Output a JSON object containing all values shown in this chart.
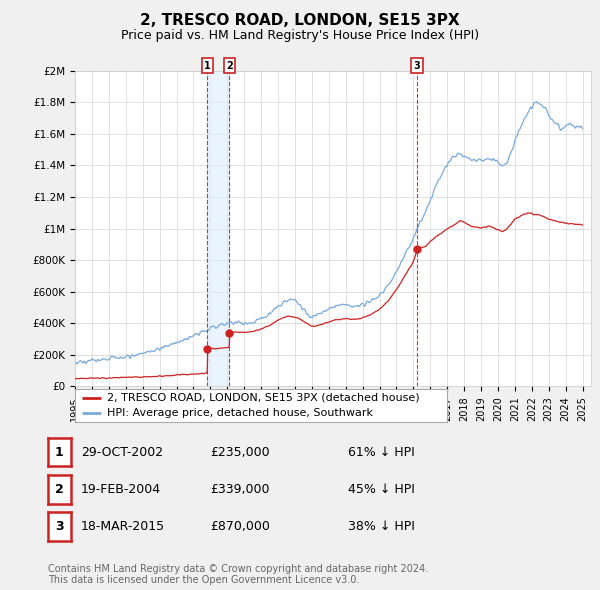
{
  "title": "2, TRESCO ROAD, LONDON, SE15 3PX",
  "subtitle": "Price paid vs. HM Land Registry's House Price Index (HPI)",
  "title_fontsize": 11,
  "subtitle_fontsize": 9,
  "ylabel_ticks": [
    "£0",
    "£200K",
    "£400K",
    "£600K",
    "£800K",
    "£1M",
    "£1.2M",
    "£1.4M",
    "£1.6M",
    "£1.8M",
    "£2M"
  ],
  "ytick_values": [
    0,
    200000,
    400000,
    600000,
    800000,
    1000000,
    1200000,
    1400000,
    1600000,
    1800000,
    2000000
  ],
  "ylim": [
    0,
    2000000
  ],
  "xlim_start": 1995.0,
  "xlim_end": 2025.5,
  "hpi_color": "#7aaadd",
  "price_color": "#cc2222",
  "sale_marker_color": "#cc2222",
  "vline_color": "#cc2222",
  "shade_color": "#ddeeff",
  "background_color": "#f0f0f0",
  "plot_bg_color": "#ffffff",
  "grid_color": "#cccccc",
  "legend_border_color": "#aaaaaa",
  "legend_entries": [
    "2, TRESCO ROAD, LONDON, SE15 3PX (detached house)",
    "HPI: Average price, detached house, Southwark"
  ],
  "transactions": [
    {
      "label": "1",
      "date_str": "29-OCT-2002",
      "date_x": 2002.83,
      "price": 235000,
      "pct": "61%",
      "direction": "↓",
      "hpi_text": "HPI"
    },
    {
      "label": "2",
      "date_str": "19-FEB-2004",
      "date_x": 2004.13,
      "price": 339000,
      "pct": "45%",
      "direction": "↓",
      "hpi_text": "HPI"
    },
    {
      "label": "3",
      "date_str": "18-MAR-2015",
      "date_x": 2015.21,
      "price": 870000,
      "pct": "38%",
      "direction": "↓",
      "hpi_text": "HPI"
    }
  ],
  "footnote": "Contains HM Land Registry data © Crown copyright and database right 2024.\nThis data is licensed under the Open Government Licence v3.0.",
  "footnote_fontsize": 7,
  "table_fontsize": 9,
  "legend_fontsize": 8
}
